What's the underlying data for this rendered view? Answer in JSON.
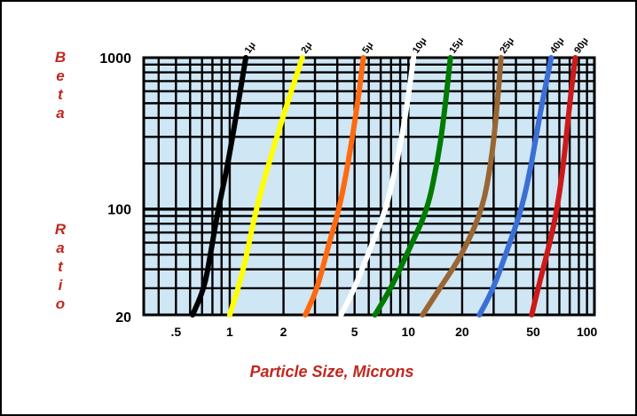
{
  "chart_data": {
    "type": "line",
    "title": "",
    "xlabel": "Particle Size, Microns",
    "ylabel": "Beta Ratio",
    "x_scale": "log",
    "y_scale": "log",
    "xlim": [
      0.33,
      110
    ],
    "ylim": [
      20,
      1000
    ],
    "grid": true,
    "plot_background": "#cfe6f5",
    "x_ticks": [
      {
        "value": 0.5,
        "label": ".5"
      },
      {
        "value": 1,
        "label": "1"
      },
      {
        "value": 2,
        "label": "2"
      },
      {
        "value": 5,
        "label": "5"
      },
      {
        "value": 10,
        "label": "10"
      },
      {
        "value": 20,
        "label": "20"
      },
      {
        "value": 50,
        "label": "50"
      },
      {
        "value": 100,
        "label": "100"
      }
    ],
    "y_ticks": [
      {
        "value": 1000,
        "label": "1000"
      },
      {
        "value": 100,
        "label": "100"
      },
      {
        "value": 20,
        "label": "20"
      }
    ],
    "series": [
      {
        "name": "1μ",
        "color": "#000000",
        "points": [
          [
            0.62,
            20
          ],
          [
            0.72,
            30
          ],
          [
            0.78,
            50
          ],
          [
            0.86,
            100
          ],
          [
            0.98,
            200
          ],
          [
            1.23,
            1000
          ]
        ]
      },
      {
        "name": "2μ",
        "color": "#ffff00",
        "points": [
          [
            1.0,
            20
          ],
          [
            1.2,
            40
          ],
          [
            1.4,
            100
          ],
          [
            1.75,
            250
          ],
          [
            2.1,
            500
          ],
          [
            2.55,
            1000
          ]
        ]
      },
      {
        "name": "5μ",
        "color": "#ff6a10",
        "points": [
          [
            2.65,
            20
          ],
          [
            3.1,
            30
          ],
          [
            3.6,
            60
          ],
          [
            4.1,
            100
          ],
          [
            4.6,
            200
          ],
          [
            5.2,
            500
          ],
          [
            5.6,
            1000
          ]
        ]
      },
      {
        "name": "10μ",
        "color": "#ffffff",
        "points": [
          [
            4.2,
            20
          ],
          [
            5.0,
            30
          ],
          [
            6.3,
            60
          ],
          [
            7.5,
            100
          ],
          [
            8.6,
            200
          ],
          [
            9.6,
            400
          ],
          [
            10.7,
            1000
          ]
        ]
      },
      {
        "name": "15μ",
        "color": "#007a00",
        "points": [
          [
            6.5,
            20
          ],
          [
            8.0,
            30
          ],
          [
            10.5,
            60
          ],
          [
            12.8,
            100
          ],
          [
            14.5,
            200
          ],
          [
            15.8,
            400
          ],
          [
            17.2,
            1000
          ]
        ]
      },
      {
        "name": "25μ",
        "color": "#996633",
        "points": [
          [
            12.0,
            20
          ],
          [
            15.0,
            30
          ],
          [
            20.0,
            50
          ],
          [
            26.0,
            100
          ],
          [
            29.0,
            200
          ],
          [
            31.0,
            400
          ],
          [
            33.0,
            1000
          ]
        ]
      },
      {
        "name": "40μ",
        "color": "#3b6fd6",
        "points": [
          [
            25.0,
            20
          ],
          [
            30.0,
            30
          ],
          [
            37.0,
            60
          ],
          [
            43.0,
            100
          ],
          [
            49.0,
            200
          ],
          [
            54.0,
            400
          ],
          [
            63.0,
            1000
          ]
        ]
      },
      {
        "name": "90μ",
        "color": "#cc1a1a",
        "points": [
          [
            49.0,
            20
          ],
          [
            55.0,
            35
          ],
          [
            62.0,
            60
          ],
          [
            68.0,
            100
          ],
          [
            74.0,
            200
          ],
          [
            80.0,
            500
          ],
          [
            86.0,
            1000
          ]
        ]
      }
    ]
  }
}
